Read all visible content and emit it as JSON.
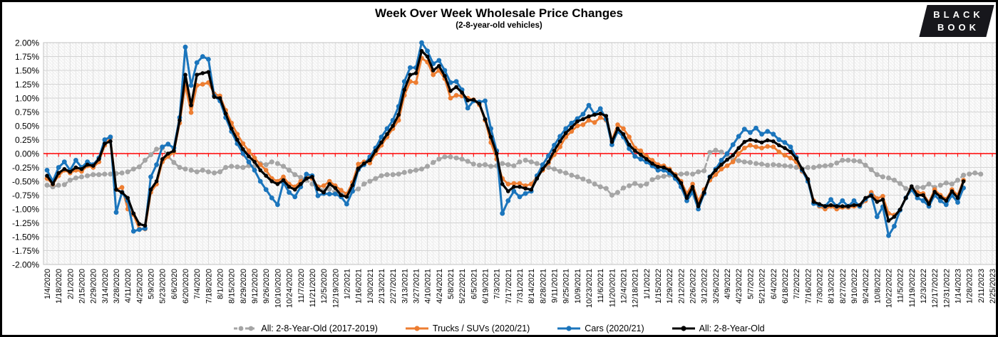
{
  "title": "Week Over Week Wholesale Price Changes",
  "subtitle": "(2-8-year-old vehicles)",
  "logo": {
    "line1": "BLACK",
    "line2": "BOOK"
  },
  "chart_data": {
    "type": "line",
    "title": "Week Over Week Wholesale Price Changes",
    "subtitle": "(2-8-year-old vehicles)",
    "y_unit": "%",
    "ylim": [
      -2.0,
      2.0
    ],
    "y_tick_step": 0.25,
    "grid": true,
    "legend_position": "bottom",
    "zero_line_color": "#FF0000",
    "y_ticks": [
      "2.00%",
      "1.75%",
      "1.50%",
      "1.25%",
      "1.00%",
      "0.75%",
      "0.50%",
      "0.25%",
      "0.00%",
      "-0.25%",
      "-0.50%",
      "-0.75%",
      "-1.00%",
      "-1.25%",
      "-1.50%",
      "-1.75%",
      "-2.00%"
    ],
    "x_label_every_n_weeks": 2,
    "x_labels": [
      "1/4/2020",
      "1/18/2020",
      "2/1/2020",
      "2/15/2020",
      "2/29/2020",
      "3/14/2020",
      "3/28/2020",
      "4/11/2020",
      "4/25/2020",
      "5/9/2020",
      "5/23/2020",
      "6/6/2020",
      "6/20/2020",
      "7/4/2020",
      "7/18/2020",
      "8/1/2020",
      "8/15/2020",
      "8/29/2020",
      "9/12/2020",
      "9/26/2020",
      "10/10/2020",
      "10/24/2020",
      "11/7/2020",
      "11/21/2020",
      "12/5/2020",
      "12/19/2020",
      "1/2/2021",
      "1/16/2021",
      "1/30/2021",
      "2/13/2021",
      "2/27/2021",
      "3/13/2021",
      "3/27/2021",
      "4/10/2021",
      "4/24/2021",
      "5/8/2021",
      "5/22/2021",
      "6/5/2021",
      "6/19/2021",
      "7/3/2021",
      "7/17/2021",
      "7/31/2021",
      "8/14/2021",
      "8/28/2021",
      "9/11/2021",
      "9/25/2021",
      "10/9/2021",
      "10/23/2021",
      "11/6/2021",
      "11/20/2021",
      "12/4/2021",
      "12/18/2021",
      "1/1/2022",
      "1/15/2022",
      "1/29/2022",
      "2/12/2022",
      "2/26/2022",
      "3/12/2022",
      "3/26/2022",
      "4/9/2022",
      "4/23/2022",
      "5/7/2022",
      "5/21/2022",
      "6/4/2022",
      "6/18/2022",
      "7/2/2022",
      "7/16/2022",
      "7/30/2022",
      "8/13/2022",
      "8/27/2022",
      "9/10/2022",
      "9/24/2022",
      "10/8/2022",
      "10/22/2022",
      "11/5/2022",
      "11/19/2022",
      "12/3/2022",
      "12/17/2022",
      "12/31/2022",
      "1/14/2023",
      "1/28/2023",
      "2/11/2023",
      "2/25/2023"
    ],
    "series": [
      {
        "name": "All: 2-8-Year-Old (2017-2019)",
        "color": "#A5A5A5",
        "style": "dashed",
        "marker": "circle",
        "values": [
          -0.57,
          -0.6,
          -0.57,
          -0.56,
          -0.48,
          -0.44,
          -0.42,
          -0.4,
          -0.38,
          -0.38,
          -0.37,
          -0.37,
          -0.36,
          -0.35,
          -0.33,
          -0.28,
          -0.24,
          -0.12,
          -0.02,
          0.08,
          0.1,
          -0.05,
          -0.16,
          -0.25,
          -0.28,
          -0.3,
          -0.33,
          -0.3,
          -0.33,
          -0.35,
          -0.33,
          -0.25,
          -0.23,
          -0.24,
          -0.25,
          -0.22,
          -0.23,
          -0.18,
          -0.2,
          -0.15,
          -0.18,
          -0.23,
          -0.3,
          -0.38,
          -0.43,
          -0.48,
          -0.55,
          -0.6,
          -0.67,
          -0.64,
          -0.7,
          -0.73,
          -0.75,
          -0.68,
          -0.64,
          -0.55,
          -0.5,
          -0.45,
          -0.4,
          -0.38,
          -0.38,
          -0.37,
          -0.34,
          -0.32,
          -0.3,
          -0.28,
          -0.23,
          -0.16,
          -0.1,
          -0.06,
          -0.06,
          -0.08,
          -0.1,
          -0.14,
          -0.19,
          -0.21,
          -0.2,
          -0.23,
          -0.22,
          -0.18,
          -0.2,
          -0.22,
          -0.15,
          -0.12,
          -0.15,
          -0.18,
          -0.21,
          -0.25,
          -0.28,
          -0.32,
          -0.35,
          -0.39,
          -0.42,
          -0.46,
          -0.5,
          -0.55,
          -0.6,
          -0.63,
          -0.75,
          -0.7,
          -0.62,
          -0.58,
          -0.54,
          -0.58,
          -0.55,
          -0.47,
          -0.43,
          -0.41,
          -0.39,
          -0.38,
          -0.37,
          -0.36,
          -0.37,
          -0.33,
          -0.31,
          0.02,
          0.06,
          0.03,
          -0.02,
          -0.11,
          -0.13,
          -0.15,
          -0.16,
          -0.18,
          -0.19,
          -0.21,
          -0.2,
          -0.21,
          -0.22,
          -0.23,
          -0.25,
          -0.27,
          -0.25,
          -0.25,
          -0.23,
          -0.22,
          -0.21,
          -0.17,
          -0.12,
          -0.12,
          -0.13,
          -0.14,
          -0.21,
          -0.29,
          -0.38,
          -0.42,
          -0.44,
          -0.48,
          -0.54,
          -0.63,
          -0.64,
          -0.61,
          -0.61,
          -0.55,
          -0.61,
          -0.57,
          -0.53,
          -0.55,
          -0.48,
          -0.39,
          -0.37,
          -0.35,
          -0.37
        ]
      },
      {
        "name": "Trucks / SUVs (2020/21)",
        "color": "#ED7D31",
        "style": "solid",
        "marker": "circle",
        "values": [
          -0.45,
          -0.55,
          -0.4,
          -0.3,
          -0.35,
          -0.3,
          -0.32,
          -0.22,
          -0.25,
          -0.15,
          0.15,
          0.28,
          -0.65,
          -0.61,
          -1.0,
          -1.1,
          -1.36,
          -1.36,
          -0.7,
          -0.55,
          -0.15,
          -0.05,
          0.02,
          0.55,
          1.23,
          0.74,
          1.23,
          1.25,
          1.28,
          1.08,
          1.04,
          0.78,
          0.55,
          0.35,
          0.18,
          0.05,
          -0.08,
          -0.2,
          -0.3,
          -0.45,
          -0.5,
          -0.42,
          -0.55,
          -0.6,
          -0.5,
          -0.42,
          -0.45,
          -0.6,
          -0.58,
          -0.5,
          -0.58,
          -0.66,
          -0.73,
          -0.52,
          -0.19,
          -0.15,
          -0.17,
          0.0,
          0.15,
          0.3,
          0.45,
          0.6,
          1.05,
          1.3,
          1.28,
          1.72,
          1.65,
          1.42,
          1.5,
          1.35,
          1.0,
          1.05,
          1.04,
          1.0,
          0.97,
          0.88,
          0.6,
          0.2,
          -0.1,
          -0.45,
          -0.55,
          -0.54,
          -0.54,
          -0.58,
          -0.55,
          -0.42,
          -0.3,
          -0.17,
          -0.02,
          0.12,
          0.3,
          0.4,
          0.5,
          0.52,
          0.6,
          0.56,
          0.65,
          0.6,
          0.24,
          0.52,
          0.45,
          0.3,
          0.1,
          0.05,
          -0.05,
          -0.12,
          -0.2,
          -0.22,
          -0.28,
          -0.38,
          -0.5,
          -0.72,
          -0.55,
          -0.86,
          -0.65,
          -0.48,
          -0.38,
          -0.28,
          -0.22,
          -0.15,
          0.0,
          0.1,
          0.15,
          0.12,
          0.1,
          0.13,
          0.12,
          0.03,
          -0.03,
          -0.08,
          -0.15,
          -0.32,
          -0.48,
          -0.85,
          -0.95,
          -1.0,
          -0.95,
          -1.0,
          -0.97,
          -0.97,
          -0.95,
          -0.95,
          -0.85,
          -0.7,
          -0.81,
          -0.77,
          -1.08,
          -1.11,
          -1.02,
          -0.8,
          -0.62,
          -0.7,
          -0.72,
          -0.88,
          -0.65,
          -0.75,
          -0.82,
          -0.65,
          -0.75,
          -0.48
        ]
      },
      {
        "name": "Cars (2020/21)",
        "color": "#1B75BC",
        "style": "solid",
        "marker": "circle",
        "values": [
          -0.3,
          -0.5,
          -0.25,
          -0.15,
          -0.3,
          -0.12,
          -0.25,
          -0.15,
          -0.2,
          -0.08,
          0.25,
          0.3,
          -1.06,
          -0.7,
          -0.85,
          -1.4,
          -1.37,
          -1.35,
          -0.42,
          -0.2,
          0.12,
          0.17,
          0.1,
          0.65,
          1.92,
          1.23,
          1.64,
          1.75,
          1.7,
          1.04,
          0.95,
          0.65,
          0.4,
          0.18,
          0.0,
          -0.15,
          -0.3,
          -0.5,
          -0.65,
          -0.8,
          -0.92,
          -0.52,
          -0.7,
          -0.78,
          -0.6,
          -0.37,
          -0.4,
          -0.76,
          -0.72,
          -0.73,
          -0.73,
          -0.78,
          -0.91,
          -0.68,
          -0.29,
          -0.2,
          -0.06,
          0.1,
          0.3,
          0.45,
          0.6,
          0.85,
          1.3,
          1.55,
          1.55,
          2.0,
          1.85,
          1.62,
          1.68,
          1.5,
          1.28,
          1.3,
          1.15,
          0.82,
          0.95,
          0.93,
          0.95,
          0.45,
          0.05,
          -1.08,
          -0.85,
          -0.68,
          -0.78,
          -0.72,
          -0.68,
          -0.4,
          -0.2,
          -0.04,
          0.15,
          0.31,
          0.45,
          0.55,
          0.63,
          0.71,
          0.87,
          0.71,
          0.81,
          0.62,
          0.16,
          0.4,
          0.3,
          0.09,
          -0.05,
          -0.1,
          -0.15,
          -0.22,
          -0.3,
          -0.3,
          -0.35,
          -0.45,
          -0.6,
          -0.85,
          -0.7,
          -1.0,
          -0.72,
          -0.42,
          -0.28,
          -0.12,
          0.0,
          0.16,
          0.31,
          0.44,
          0.38,
          0.46,
          0.35,
          0.4,
          0.35,
          0.25,
          0.2,
          0.12,
          -0.07,
          -0.3,
          -0.5,
          -0.9,
          -0.93,
          -0.95,
          -0.83,
          -0.95,
          -0.85,
          -0.95,
          -0.85,
          -0.95,
          -0.82,
          -0.75,
          -1.14,
          -0.96,
          -1.48,
          -1.31,
          -1.02,
          -0.8,
          -0.65,
          -0.8,
          -0.85,
          -0.95,
          -0.75,
          -0.85,
          -0.92,
          -0.75,
          -0.88,
          -0.62
        ]
      },
      {
        "name": "All: 2-8-Year-Old",
        "color": "#000000",
        "style": "solid",
        "marker": "circle",
        "values": [
          -0.4,
          -0.55,
          -0.35,
          -0.28,
          -0.33,
          -0.25,
          -0.28,
          -0.2,
          -0.22,
          -0.1,
          0.18,
          0.22,
          -0.65,
          -0.7,
          -0.8,
          -1.08,
          -1.27,
          -1.3,
          -0.65,
          -0.5,
          -0.1,
          0.0,
          0.05,
          0.6,
          1.42,
          0.87,
          1.42,
          1.45,
          1.47,
          1.02,
          1.0,
          0.72,
          0.45,
          0.25,
          0.08,
          -0.05,
          -0.15,
          -0.3,
          -0.4,
          -0.5,
          -0.55,
          -0.48,
          -0.6,
          -0.65,
          -0.55,
          -0.45,
          -0.42,
          -0.64,
          -0.7,
          -0.55,
          -0.62,
          -0.75,
          -0.78,
          -0.57,
          -0.27,
          -0.18,
          -0.12,
          0.05,
          0.2,
          0.35,
          0.5,
          0.7,
          1.15,
          1.42,
          1.45,
          1.85,
          1.75,
          1.5,
          1.58,
          1.4,
          1.13,
          1.2,
          1.1,
          0.96,
          0.97,
          0.9,
          0.62,
          0.3,
          0.0,
          -0.55,
          -0.68,
          -0.6,
          -0.6,
          -0.63,
          -0.65,
          -0.45,
          -0.28,
          -0.15,
          0.05,
          0.22,
          0.37,
          0.47,
          0.58,
          0.62,
          0.67,
          0.7,
          0.72,
          0.68,
          0.21,
          0.45,
          0.35,
          0.16,
          0.05,
          -0.02,
          -0.1,
          -0.18,
          -0.24,
          -0.25,
          -0.3,
          -0.4,
          -0.53,
          -0.8,
          -0.6,
          -0.95,
          -0.7,
          -0.42,
          -0.3,
          -0.2,
          -0.11,
          -0.03,
          0.1,
          0.21,
          0.25,
          0.23,
          0.2,
          0.24,
          0.22,
          0.15,
          0.1,
          0.03,
          -0.09,
          -0.28,
          -0.46,
          -0.87,
          -0.91,
          -0.95,
          -0.93,
          -0.95,
          -0.95,
          -0.95,
          -0.93,
          -0.93,
          -0.8,
          -0.76,
          -0.87,
          -0.83,
          -1.21,
          -1.14,
          -1.01,
          -0.8,
          -0.59,
          -0.75,
          -0.75,
          -0.91,
          -0.69,
          -0.78,
          -0.85,
          -0.68,
          -0.8,
          -0.5
        ]
      }
    ]
  }
}
